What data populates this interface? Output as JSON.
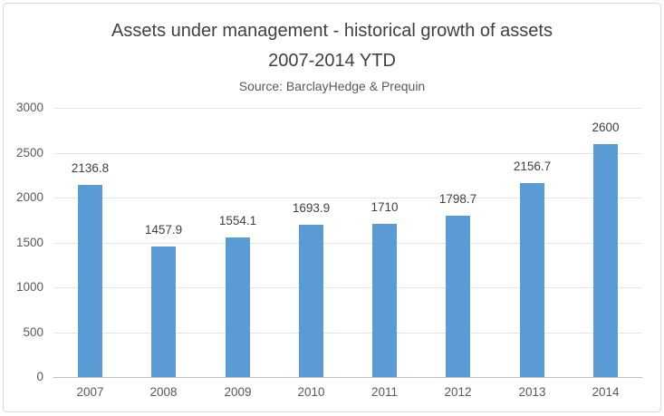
{
  "chart": {
    "title_line1": "Assets under management - historical growth of assets",
    "title_line2": "2007-2014 YTD",
    "subtitle": "Source: BarclayHedge & Prequin"
  },
  "chart_data": {
    "type": "bar",
    "title": "Assets under management - historical growth of assets 2007-2014 YTD",
    "subtitle": "Source: BarclayHedge & Prequin",
    "categories": [
      "2007",
      "2008",
      "2009",
      "2010",
      "2011",
      "2012",
      "2013",
      "2014"
    ],
    "values": [
      2136.8,
      1457.9,
      1554.1,
      1693.9,
      1710,
      1798.7,
      2156.7,
      2600
    ],
    "value_labels": [
      "2136.8",
      "1457.9",
      "1554.1",
      "1693.9",
      "1710",
      "1798.7",
      "2156.7",
      "2600"
    ],
    "xlabel": "",
    "ylabel": "",
    "ylim": [
      0,
      3000
    ],
    "yticks": [
      0,
      500,
      1000,
      1500,
      2000,
      2500,
      3000
    ],
    "grid": true,
    "legend": false,
    "data_labels": true
  },
  "colors": {
    "bar": "#5B9BD5",
    "title_text": "#404040",
    "axis_text": "#595959",
    "gridline": "#E4E4E4",
    "axis_line": "#BFBFBF",
    "frame_border": "#D6D6D6",
    "background": "#FFFFFF"
  }
}
